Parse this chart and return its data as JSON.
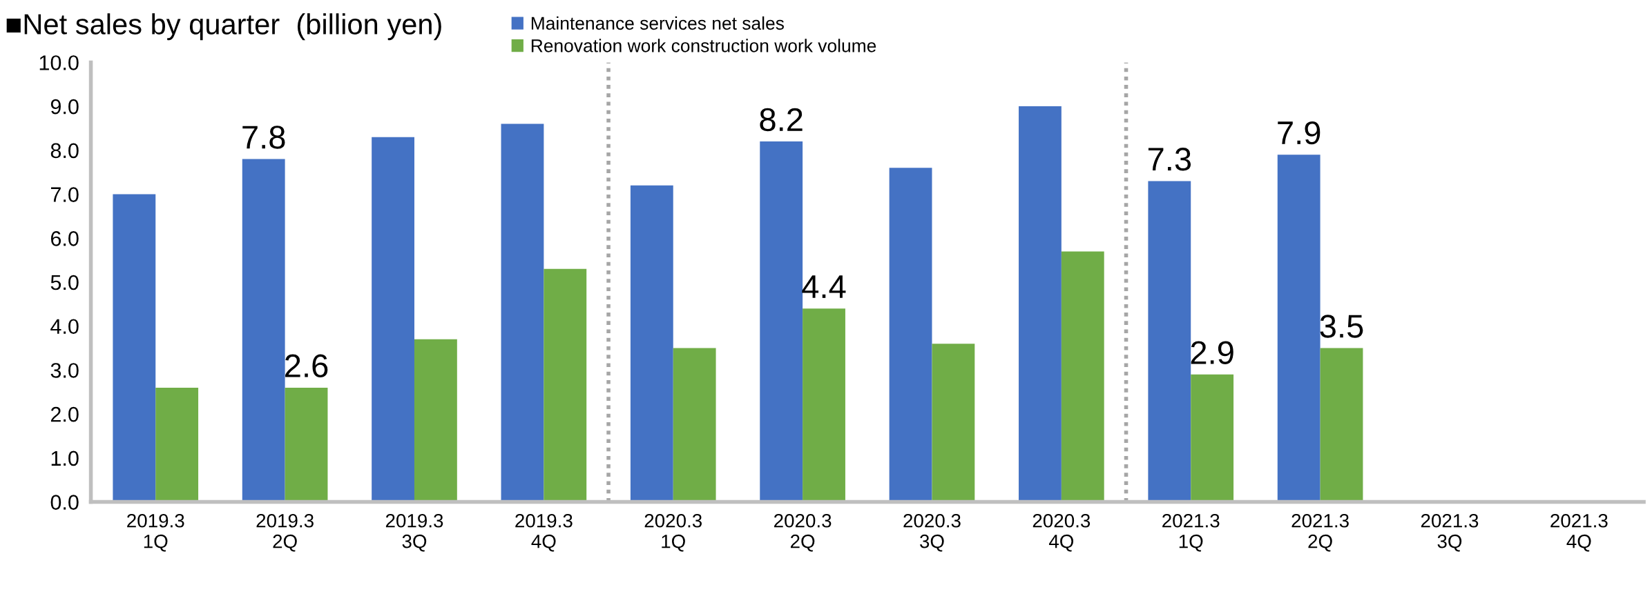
{
  "chart_data": {
    "type": "bar",
    "title": "■Net sales by quarter  (billion yen)",
    "categories": [
      "2019.3\n1Q",
      "2019.3\n2Q",
      "2019.3\n3Q",
      "2019.3\n4Q",
      "2020.3\n1Q",
      "2020.3\n2Q",
      "2020.3\n3Q",
      "2020.3\n4Q",
      "2021.3\n1Q",
      "2021.3\n2Q",
      "2021.3\n3Q",
      "2021.3\n4Q"
    ],
    "series": [
      {
        "name": "Maintenance services net sales",
        "color": "#4472c4",
        "values": [
          7.0,
          7.8,
          8.3,
          8.6,
          7.2,
          8.2,
          7.6,
          9.0,
          7.3,
          7.9,
          null,
          null
        ],
        "value_labels": [
          null,
          "7.8",
          null,
          null,
          null,
          "8.2",
          null,
          null,
          "7.3",
          "7.9",
          null,
          null
        ]
      },
      {
        "name": "Renovation work construction work volume",
        "color": "#70ad47",
        "values": [
          2.6,
          2.6,
          3.7,
          5.3,
          3.5,
          4.4,
          3.6,
          5.7,
          2.9,
          3.5,
          null,
          null
        ],
        "value_labels": [
          null,
          "2.6",
          null,
          null,
          null,
          "4.4",
          null,
          null,
          "2.9",
          "3.5",
          null,
          null
        ]
      }
    ],
    "ylim": [
      0,
      10
    ],
    "yticks": [
      {
        "value": 0,
        "label": "0.0"
      },
      {
        "value": 1,
        "label": "1.0"
      },
      {
        "value": 2,
        "label": "2.0"
      },
      {
        "value": 3,
        "label": "3.0"
      },
      {
        "value": 4,
        "label": "4.0"
      },
      {
        "value": 5,
        "label": "5.0"
      },
      {
        "value": 6,
        "label": "6.0"
      },
      {
        "value": 7,
        "label": "7.0"
      },
      {
        "value": 8,
        "label": "8.0"
      },
      {
        "value": 9,
        "label": "9.0"
      },
      {
        "value": 10,
        "label": "10.0"
      }
    ],
    "grid": false,
    "legend": "top"
  }
}
